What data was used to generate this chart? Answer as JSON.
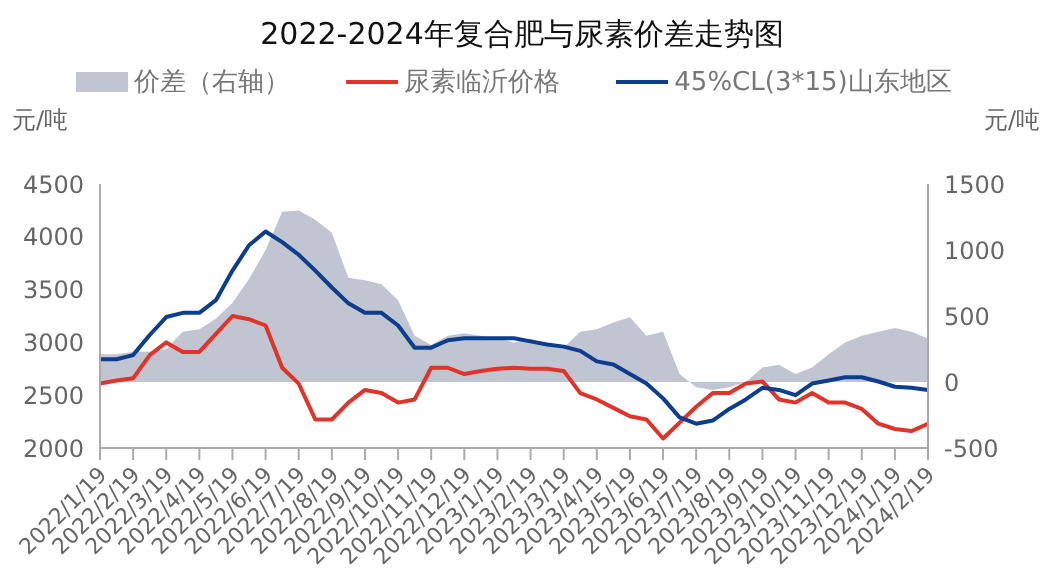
{
  "chart_data": {
    "type": "line",
    "title": "2022-2024年复合肥与尿素价差走势图",
    "ylabel": "元/吨",
    "y2label": "元/吨",
    "categories": [
      "2022/1/19",
      null,
      "2022/2/19",
      null,
      "2022/3/19",
      null,
      "2022/4/19",
      null,
      "2022/5/19",
      null,
      "2022/6/19",
      null,
      "2022/7/19",
      null,
      "2022/8/19",
      null,
      "2022/9/19",
      null,
      "2022/10/19",
      null,
      "2022/11/19",
      null,
      "2022/12/19",
      null,
      "2023/1/19",
      null,
      "2023/2/19",
      null,
      "2023/3/19",
      null,
      "2023/4/19",
      null,
      "2023/5/19",
      null,
      "2023/6/19",
      null,
      "2023/7/19",
      null,
      "2023/8/19",
      null,
      "2023/9/19",
      null,
      "2023/10/19",
      null,
      "2023/11/19",
      null,
      "2023/12/19",
      null,
      "2024/1/19",
      null,
      "2024/2/19"
    ],
    "series": [
      {
        "name": "价差（右轴）",
        "type": "area",
        "axis": "y2",
        "color": "#4a5a7a",
        "values": [
          210,
          210,
          230,
          230,
          250,
          380,
          400,
          480,
          600,
          780,
          1000,
          1290,
          1300,
          1230,
          1130,
          790,
          770,
          740,
          620,
          350,
          280,
          350,
          370,
          350,
          330,
          300,
          330,
          280,
          260,
          380,
          400,
          450,
          490,
          350,
          380,
          60,
          -40,
          -60,
          -40,
          0,
          110,
          130,
          60,
          110,
          210,
          300,
          350,
          380,
          410,
          380,
          330
        ]
      },
      {
        "name": "尿素临沂价格",
        "color": "#e0342a",
        "values": [
          2610,
          2640,
          2660,
          2880,
          3000,
          2910,
          2910,
          3080,
          3250,
          3220,
          3160,
          2760,
          2610,
          2270,
          2270,
          2430,
          2550,
          2520,
          2430,
          2460,
          2760,
          2760,
          2700,
          2730,
          2750,
          2760,
          2750,
          2750,
          2730,
          2520,
          2460,
          2380,
          2300,
          2270,
          2090,
          2240,
          2390,
          2520,
          2520,
          2610,
          2630,
          2460,
          2430,
          2520,
          2430,
          2430,
          2370,
          2230,
          2180,
          2160,
          2230
        ]
      },
      {
        "name": "45%CL(3*15)山东地区",
        "color": "#0d3d8f",
        "values": [
          2840,
          2840,
          2880,
          3070,
          3240,
          3280,
          3280,
          3400,
          3680,
          3920,
          4050,
          3950,
          3830,
          3680,
          3520,
          3370,
          3280,
          3280,
          3160,
          2950,
          2950,
          3020,
          3040,
          3040,
          3040,
          3040,
          3010,
          2980,
          2960,
          2920,
          2820,
          2790,
          2700,
          2610,
          2470,
          2290,
          2230,
          2260,
          2370,
          2460,
          2570,
          2550,
          2500,
          2610,
          2640,
          2670,
          2670,
          2630,
          2580,
          2570,
          2550
        ]
      }
    ],
    "ylim": [
      2000,
      4500
    ],
    "yticks": [
      2000,
      2500,
      3000,
      3500,
      4000,
      4500
    ],
    "y2lim": [
      -500,
      1500
    ],
    "y2ticks": [
      -500,
      0,
      500,
      1000,
      1500
    ],
    "legend": "top",
    "grid": false,
    "marker": "none"
  }
}
